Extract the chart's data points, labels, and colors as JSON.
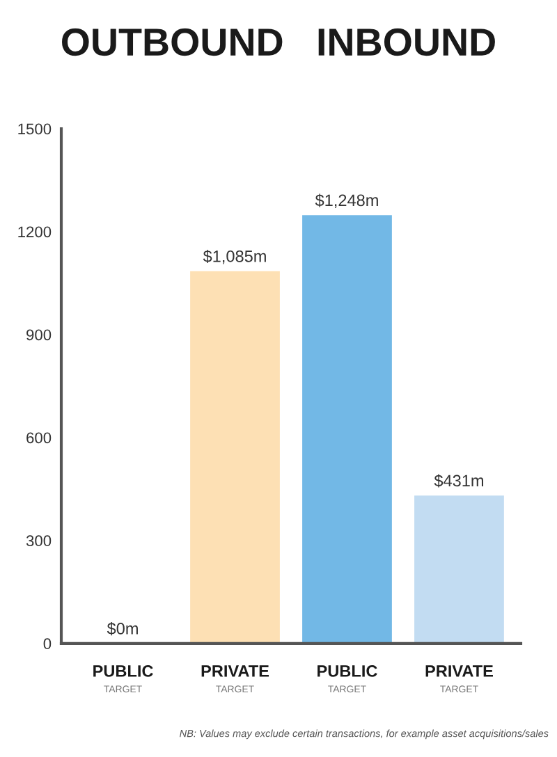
{
  "chart_data": {
    "type": "bar",
    "title": "OUTBOUND   INBOUND",
    "categories": [
      "PUBLIC\nTARGET",
      "PRIVATE\nTARGET",
      "PUBLIC\nTARGET",
      "PRIVATE\nTARGET"
    ],
    "values": [
      0,
      1085,
      1248,
      431
    ],
    "colors": [
      "#fde0b4",
      "#fde0b4",
      "#72b8e6",
      "#c2dcf2"
    ],
    "value_labels": [
      "$0m",
      "$1,085m",
      "$1,248m",
      "$431m"
    ],
    "ylim": [
      0,
      1500
    ],
    "yticks": [
      0,
      300,
      600,
      900,
      1200,
      1500
    ],
    "grid": false,
    "legend": false,
    "annotations": [
      "NB: Values may exclude certain transactions, for example asset acquisitions/sales"
    ]
  }
}
